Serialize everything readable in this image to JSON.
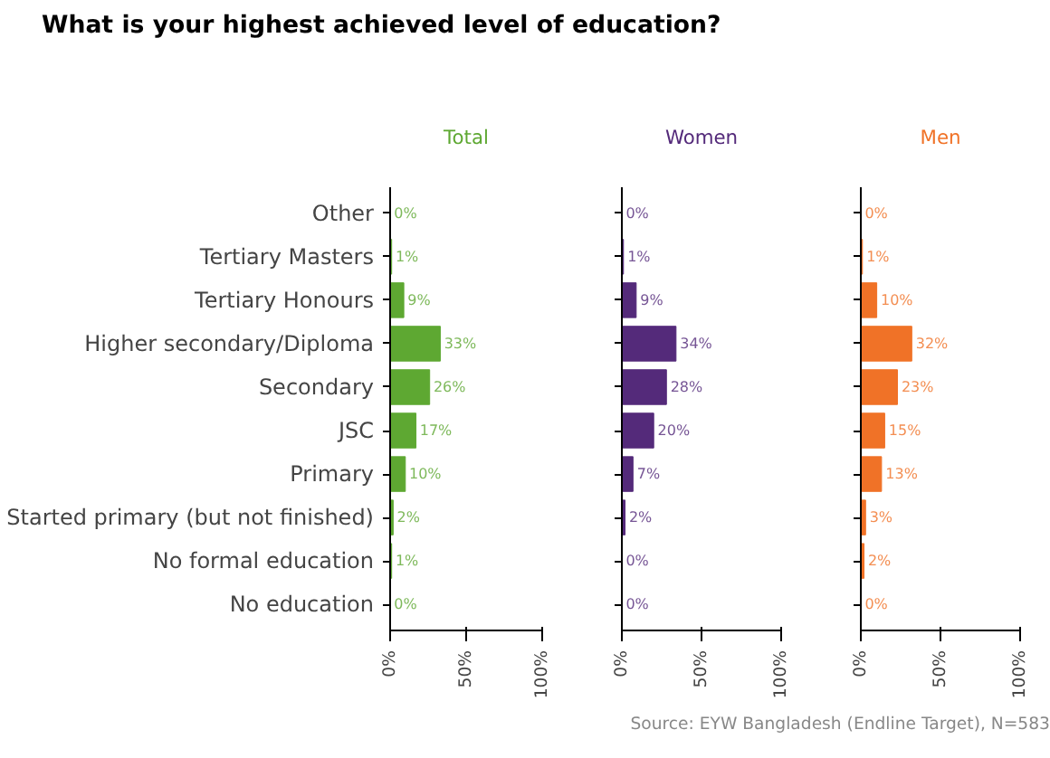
{
  "chart_data": [
    {
      "type": "bar",
      "orientation": "horizontal",
      "title": "What is your highest achieved level of education?",
      "subtitle": "Total",
      "categories": [
        "Other",
        "Tertiary Masters",
        "Tertiary Honours",
        "Higher secondary/Diploma",
        "Secondary",
        "JSC",
        "Primary",
        "Started primary (but not finished)",
        "No formal education",
        "No education"
      ],
      "values": [
        0,
        1,
        9,
        33,
        26,
        17,
        10,
        2,
        1,
        0
      ],
      "value_labels": [
        "0%",
        "1%",
        "9%",
        "33%",
        "26%",
        "17%",
        "10%",
        "2%",
        "1%",
        "0%"
      ],
      "color": "#5ea832",
      "xlim": [
        0,
        100
      ],
      "xticks": [
        {
          "value": 0,
          "label": "0%"
        },
        {
          "value": 50,
          "label": "50%"
        },
        {
          "value": 100,
          "label": "100%"
        }
      ],
      "grid": false
    },
    {
      "type": "bar",
      "orientation": "horizontal",
      "subtitle": "Women",
      "values": [
        0,
        1,
        9,
        34,
        28,
        20,
        7,
        2,
        0,
        0
      ],
      "value_labels": [
        "0%",
        "1%",
        "9%",
        "34%",
        "28%",
        "20%",
        "7%",
        "2%",
        "0%",
        "0%"
      ],
      "color": "#542a7a",
      "xlim": [
        0,
        100
      ],
      "xticks": [
        {
          "value": 0,
          "label": "0%"
        },
        {
          "value": 50,
          "label": "50%"
        },
        {
          "value": 100,
          "label": "100%"
        }
      ],
      "grid": false,
      "tick_labels": "x"
    },
    {
      "type": "bar",
      "orientation": "horizontal",
      "subtitle": "Men",
      "values": [
        0,
        1,
        10,
        32,
        23,
        15,
        13,
        3,
        2,
        0
      ],
      "value_labels": [
        "0%",
        "1%",
        "10%",
        "32%",
        "23%",
        "15%",
        "13%",
        "3%",
        "2%",
        "0%"
      ],
      "color": "#f07227",
      "xlim": [
        0,
        100
      ],
      "xticks": [
        {
          "value": 0,
          "label": "0%"
        },
        {
          "value": 50,
          "label": "50%"
        },
        {
          "value": 100,
          "label": "100%"
        }
      ],
      "grid": false,
      "tick_labels": "x",
      "annotations": [
        "Source: EYW Bangladesh (Endline Target), N=583"
      ]
    }
  ]
}
